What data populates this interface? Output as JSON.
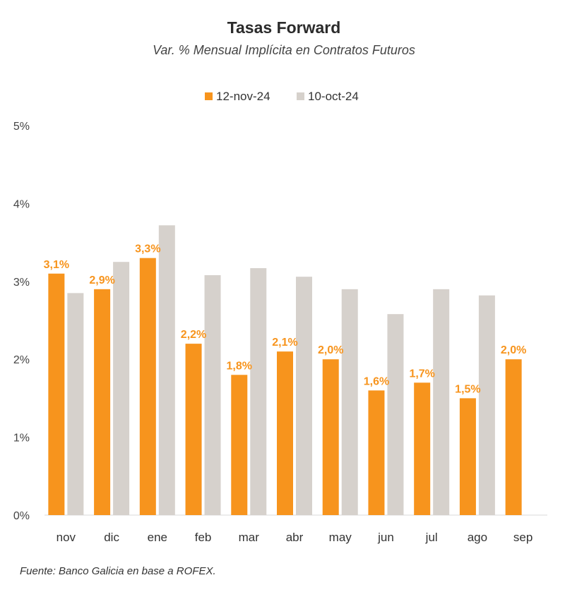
{
  "chart_data": {
    "type": "bar",
    "title": "Tasas Forward",
    "subtitle": "Var. % Mensual Implícita en Contratos Futuros",
    "categories": [
      "nov",
      "dic",
      "ene",
      "feb",
      "mar",
      "abr",
      "may",
      "jun",
      "jul",
      "ago",
      "sep"
    ],
    "series": [
      {
        "name": "12-nov-24",
        "color": "#F7941D",
        "values": [
          3.1,
          2.9,
          3.3,
          2.2,
          1.8,
          2.1,
          2.0,
          1.6,
          1.7,
          1.5,
          2.0
        ],
        "labels": [
          "3,1%",
          "2,9%",
          "3,3%",
          "2,2%",
          "1,8%",
          "2,1%",
          "2,0%",
          "1,6%",
          "1,7%",
          "1,5%",
          "2,0%"
        ]
      },
      {
        "name": "10-oct-24",
        "color": "#D6D1CC",
        "values": [
          2.85,
          3.25,
          3.72,
          3.08,
          3.17,
          3.06,
          2.9,
          2.58,
          2.9,
          2.82,
          null
        ]
      }
    ],
    "ylim": [
      0,
      5
    ],
    "yticks": [
      0,
      1,
      2,
      3,
      4,
      5
    ],
    "ytick_labels": [
      "0%",
      "1%",
      "2%",
      "3%",
      "4%",
      "5%"
    ],
    "xlabel": "",
    "ylabel": "",
    "legend_position": "top-center",
    "grid": false,
    "source": "Fuente: Banco Galicia en base a ROFEX."
  }
}
